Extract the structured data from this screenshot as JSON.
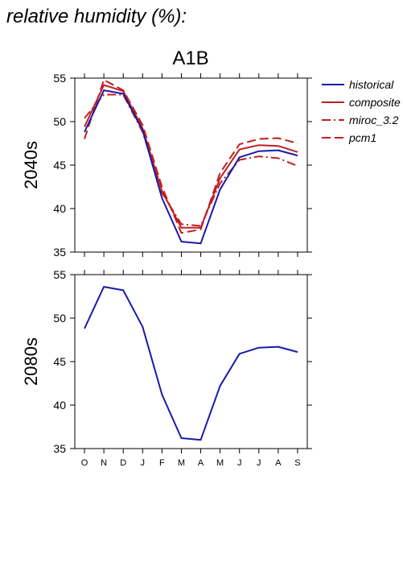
{
  "figure_title": "relative humidity (%):",
  "chart_data": [
    {
      "type": "line",
      "title": "A1B",
      "ylabel": "2040s",
      "xlabel": "",
      "categories": [
        "O",
        "N",
        "D",
        "J",
        "F",
        "M",
        "A",
        "M",
        "J",
        "J",
        "A",
        "S"
      ],
      "ylim": [
        35,
        55
      ],
      "yticks": [
        35,
        40,
        45,
        50,
        55
      ],
      "grid": false,
      "legend_position": "right",
      "series": [
        {
          "name": "historical",
          "color": "#1a1aaa",
          "dash": "solid",
          "values": [
            48.8,
            53.6,
            53.2,
            49.0,
            41.2,
            36.2,
            36.0,
            42.2,
            45.9,
            46.6,
            46.7,
            46.1
          ]
        },
        {
          "name": "composite",
          "color": "#c0201f",
          "dash": "solid",
          "values": [
            49.4,
            54.2,
            53.5,
            49.2,
            42.0,
            37.8,
            37.8,
            43.5,
            46.8,
            47.3,
            47.2,
            46.5
          ]
        },
        {
          "name": "miroc_3.2",
          "color": "#c0201f",
          "dash": "dashdot",
          "values": [
            50.4,
            53.1,
            53.1,
            48.8,
            41.8,
            38.2,
            38.0,
            42.9,
            45.6,
            46.0,
            45.8,
            44.9
          ]
        },
        {
          "name": "pcm1",
          "color": "#c0201f",
          "dash": "dash",
          "values": [
            48.0,
            54.8,
            53.6,
            49.6,
            42.5,
            37.2,
            37.6,
            44.1,
            47.4,
            48.0,
            48.1,
            47.5
          ]
        }
      ]
    },
    {
      "type": "line",
      "title": "",
      "ylabel": "2080s",
      "xlabel": "",
      "categories": [
        "O",
        "N",
        "D",
        "J",
        "F",
        "M",
        "A",
        "M",
        "J",
        "J",
        "A",
        "S"
      ],
      "ylim": [
        35,
        55
      ],
      "yticks": [
        35,
        40,
        45,
        50,
        55
      ],
      "grid": false,
      "series": [
        {
          "color": "#1a1aaa",
          "dash": "solid",
          "values": [
            48.8,
            53.6,
            53.2,
            49.0,
            41.2,
            36.2,
            36.0,
            42.2,
            45.9,
            46.6,
            46.7,
            46.1
          ]
        }
      ]
    }
  ]
}
